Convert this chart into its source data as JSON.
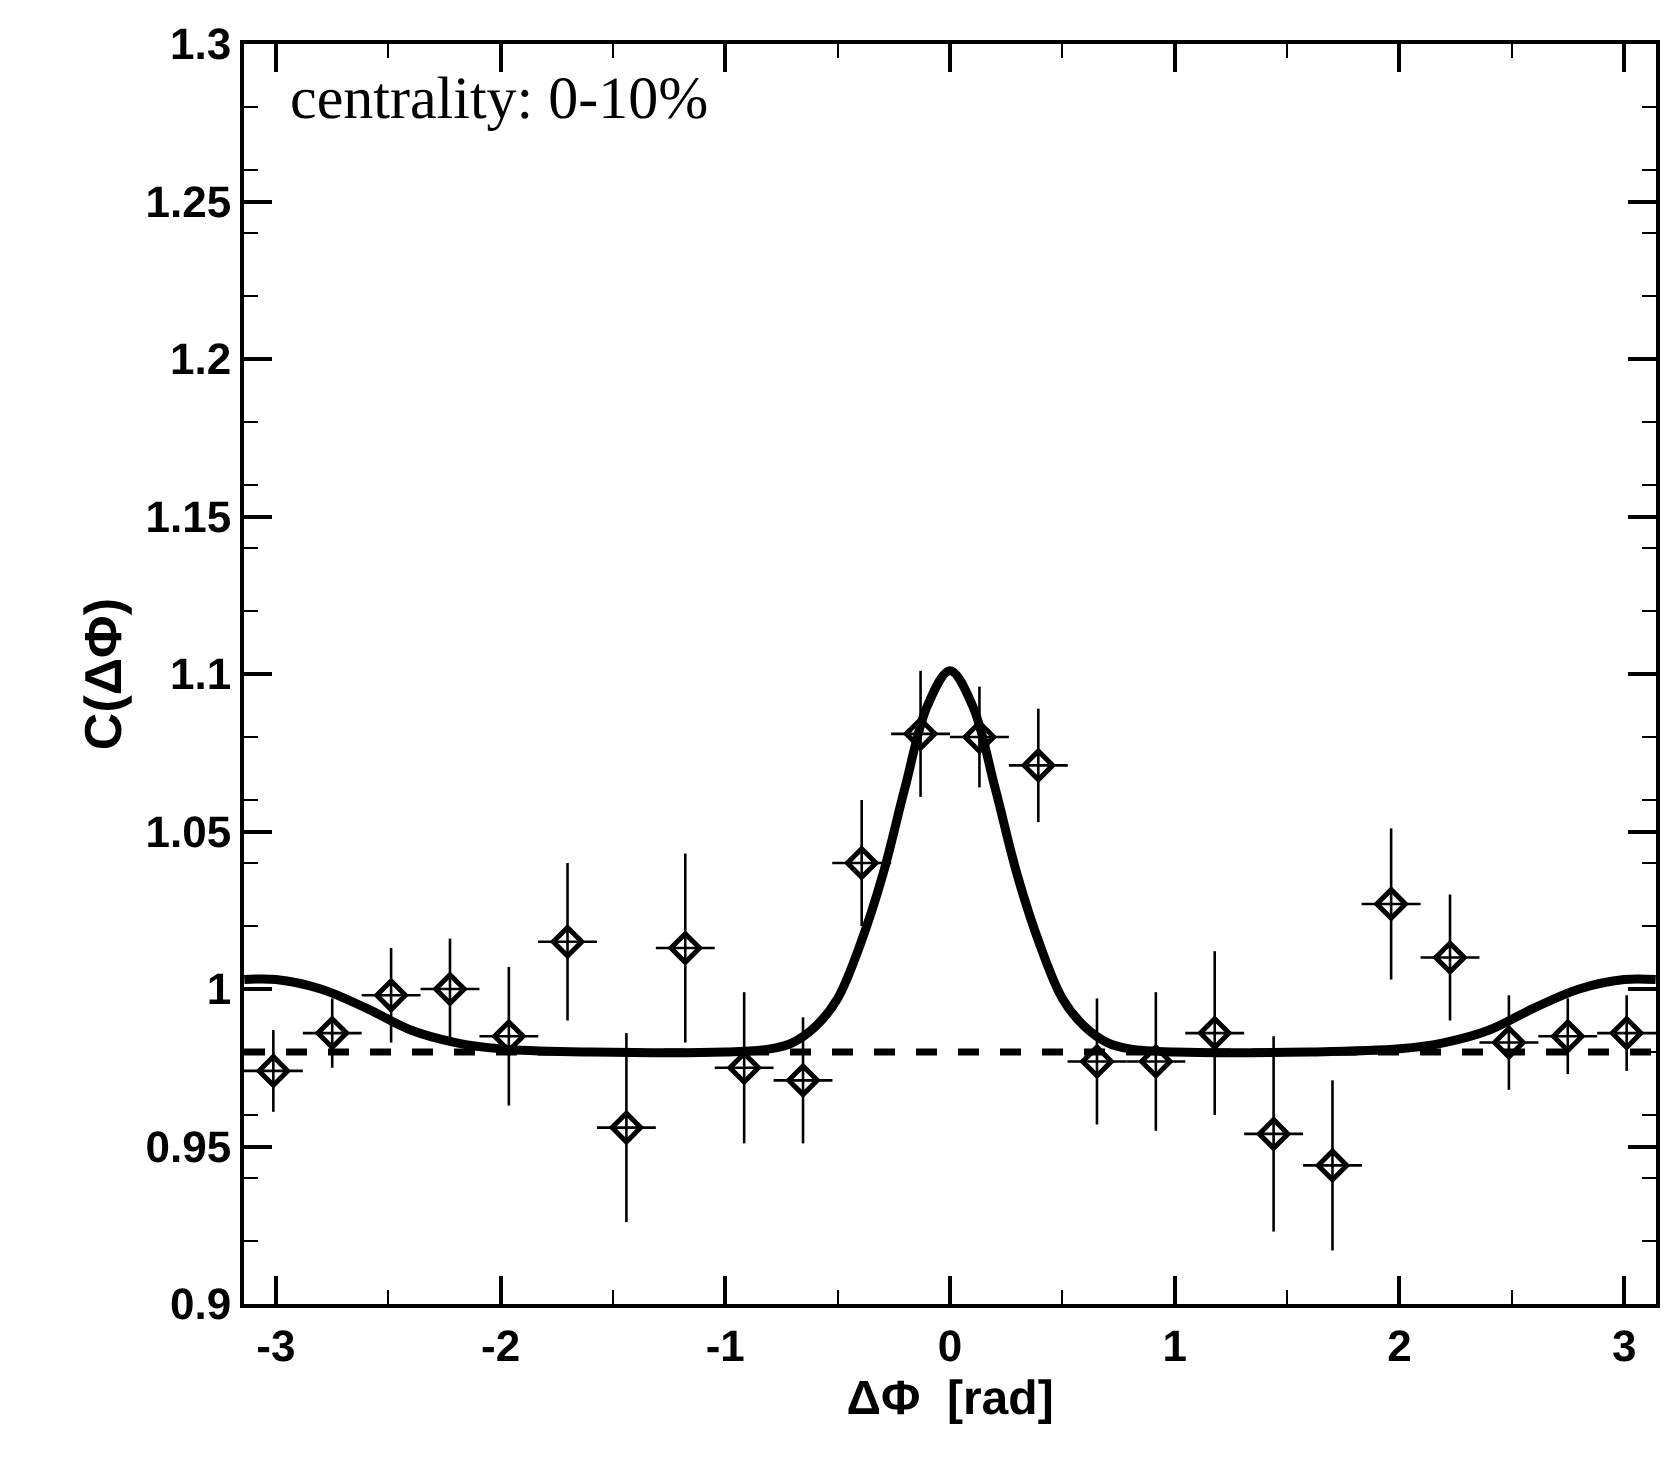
{
  "chart_data": {
    "type": "scatter",
    "xlabel": "ΔΦ  [rad]",
    "ylabel": "C(ΔΦ)",
    "annotations": [
      "centrality: 0-10%"
    ],
    "xlim": [
      -3.1416,
      3.1416
    ],
    "xticks": [
      -3,
      -2,
      -1,
      0,
      1,
      2,
      3
    ],
    "ylim": [
      0.9,
      1.3
    ],
    "yticks": [
      0.9,
      0.95,
      1,
      1.05,
      1.1,
      1.15,
      1.2,
      1.25,
      1.3
    ],
    "ref_lines": [
      {
        "axis": "y",
        "value": 0.98,
        "color": "#000000",
        "line_style": "dashed"
      }
    ],
    "series": [
      {
        "marker": "diamond",
        "color": "#000000",
        "x": [
          -3.011,
          -2.749,
          -2.487,
          -2.225,
          -1.963,
          -1.702,
          -1.44,
          -1.178,
          -0.916,
          -0.654,
          -0.393,
          -0.131,
          0.131,
          0.393,
          0.654,
          0.916,
          1.178,
          1.44,
          1.702,
          1.963,
          2.225,
          2.487,
          2.749,
          3.011
        ],
        "values": [
          0.974,
          0.986,
          0.998,
          1.0,
          0.985,
          1.015,
          0.956,
          1.013,
          0.975,
          0.971,
          1.04,
          1.081,
          1.08,
          1.071,
          0.977,
          0.977,
          0.986,
          0.954,
          0.944,
          1.027,
          1.01,
          0.983,
          0.985,
          0.986
        ],
        "errors": [
          0.013,
          0.011,
          0.015,
          0.016,
          0.022,
          0.025,
          0.03,
          0.03,
          0.024,
          0.02,
          0.02,
          0.02,
          0.016,
          0.018,
          0.02,
          0.022,
          0.026,
          0.031,
          0.027,
          0.024,
          0.02,
          0.015,
          0.012,
          0.012
        ],
        "xerrors": [
          0.131,
          0.131,
          0.131,
          0.131,
          0.131,
          0.131,
          0.131,
          0.131,
          0.131,
          0.131,
          0.131,
          0.131,
          0.131,
          0.131,
          0.131,
          0.131,
          0.131,
          0.131,
          0.131,
          0.131,
          0.131,
          0.131,
          0.131,
          0.131
        ]
      },
      {
        "type": "line",
        "line_style": "solid",
        "color": "#000000",
        "x": [
          -3.14,
          -3.0,
          -2.8,
          -2.6,
          -2.4,
          -2.2,
          -2.0,
          -1.6,
          -1.0,
          -0.8,
          -0.7,
          -0.6,
          -0.5,
          -0.4,
          -0.3,
          -0.2,
          -0.1,
          0,
          0.1,
          0.2,
          0.3,
          0.4,
          0.5,
          0.6,
          0.7,
          0.8,
          1.0,
          1.6,
          2.0,
          2.2,
          2.4,
          2.6,
          2.8,
          3.0,
          3.14
        ],
        "values": [
          1.003,
          1.003,
          1.0,
          0.994,
          0.987,
          0.983,
          0.981,
          0.98,
          0.98,
          0.981,
          0.983,
          0.988,
          0.997,
          1.014,
          1.036,
          1.064,
          1.09,
          1.101,
          1.09,
          1.064,
          1.036,
          1.014,
          0.997,
          0.988,
          0.983,
          0.981,
          0.98,
          0.98,
          0.981,
          0.983,
          0.987,
          0.994,
          1.0,
          1.003,
          1.003
        ]
      }
    ]
  }
}
